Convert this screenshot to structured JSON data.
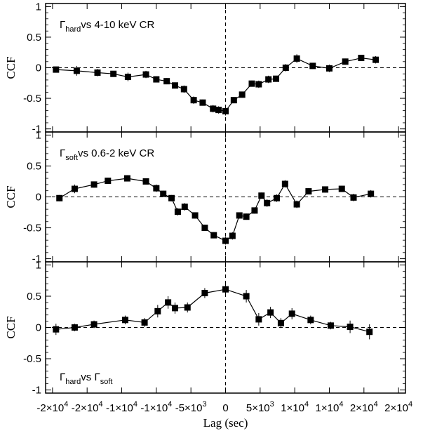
{
  "chart_data": {
    "type": "line",
    "x_axis": {
      "label": "Lag (sec)",
      "lim": [
        -26000,
        26000
      ],
      "ticks": [
        {
          "value": -25000,
          "label_base": "-2×10",
          "label_exp": "4"
        },
        {
          "value": -20000,
          "label_base": "-2×10",
          "label_exp": "4"
        },
        {
          "value": -15000,
          "label_base": "-1×10",
          "label_exp": "4"
        },
        {
          "value": -10000,
          "label_base": "-1×10",
          "label_exp": "4"
        },
        {
          "value": -5000,
          "label_base": "-5×10",
          "label_exp": "3"
        },
        {
          "value": 0,
          "label_base": "0",
          "label_exp": ""
        },
        {
          "value": 5000,
          "label_base": "5×10",
          "label_exp": "3"
        },
        {
          "value": 10000,
          "label_base": "1×10",
          "label_exp": "4"
        },
        {
          "value": 15000,
          "label_base": "1×10",
          "label_exp": "4"
        },
        {
          "value": 20000,
          "label_base": "2×10",
          "label_exp": "4"
        },
        {
          "value": 25000,
          "label_base": "2×10",
          "label_exp": "4"
        }
      ]
    },
    "panels": [
      {
        "ylabel": "CCF",
        "ylim": [
          -1.05,
          1.05
        ],
        "yticks": [
          {
            "v": 1,
            "l": "1"
          },
          {
            "v": 0.5,
            "l": "0.5"
          },
          {
            "v": 0,
            "l": "0"
          },
          {
            "v": -0.5,
            "l": "-0.5"
          },
          {
            "v": -1,
            "l": "-1"
          }
        ],
        "annotation": {
          "g": "Γ",
          "sub": "hard",
          "rest": "vs 4-10 keV CR"
        },
        "annotation_pos": "top-left",
        "series": [
          {
            "x": [
              -24500,
              -21500,
              -18500,
              -16200,
              -14100,
              -11500,
              -10000,
              -8500,
              -7300,
              -6000,
              -4600,
              -3300,
              -1800,
              -1000,
              0,
              1200,
              2400,
              3800,
              4800,
              6200,
              7300,
              8700,
              10300,
              12600,
              15000,
              17300,
              19600,
              21700
            ],
            "y": [
              -0.03,
              -0.05,
              -0.08,
              -0.1,
              -0.15,
              -0.11,
              -0.19,
              -0.22,
              -0.29,
              -0.35,
              -0.53,
              -0.57,
              -0.67,
              -0.69,
              -0.71,
              -0.53,
              -0.44,
              -0.26,
              -0.27,
              -0.19,
              -0.18,
              0.0,
              0.15,
              0.03,
              -0.01,
              0.1,
              0.16,
              0.13
            ],
            "yerr": [
              0.04,
              0.08,
              0.06,
              0.04,
              0.07,
              0.06,
              0.05,
              0.05,
              0.05,
              0.06,
              0.06,
              0.05,
              0.06,
              0.06,
              0.07,
              0.05,
              0.05,
              0.05,
              0.06,
              0.06,
              0.05,
              0.06,
              0.07,
              0.05,
              0.06,
              0.05,
              0.05,
              0.06
            ]
          }
        ]
      },
      {
        "ylabel": "CCF",
        "ylim": [
          -1.05,
          1.05
        ],
        "yticks": [
          {
            "v": 1,
            "l": "1"
          },
          {
            "v": 0.5,
            "l": "0.5"
          },
          {
            "v": 0,
            "l": "0"
          },
          {
            "v": -0.5,
            "l": "-0.5"
          },
          {
            "v": -1,
            "l": "-1"
          }
        ],
        "annotation": {
          "g": "Γ",
          "sub": "soft",
          "rest": "vs 0.6-2 keV CR"
        },
        "annotation_pos": "top-left",
        "series": [
          {
            "x": [
              -24000,
              -21800,
              -19000,
              -17000,
              -14200,
              -11500,
              -10000,
              -9000,
              -7800,
              -6900,
              -5900,
              -4400,
              -3000,
              -1700,
              0,
              1000,
              2000,
              3000,
              4200,
              5200,
              6000,
              7400,
              8600,
              10300,
              12000,
              14400,
              16800,
              18500,
              21000
            ],
            "y": [
              -0.02,
              0.13,
              0.2,
              0.26,
              0.3,
              0.25,
              0.14,
              0.05,
              -0.02,
              -0.24,
              -0.16,
              -0.3,
              -0.5,
              -0.62,
              -0.71,
              -0.63,
              -0.3,
              -0.32,
              -0.22,
              0.02,
              -0.1,
              -0.02,
              0.21,
              -0.12,
              0.09,
              0.12,
              0.13,
              -0.01,
              0.05
            ],
            "yerr": [
              0.05,
              0.07,
              0.05,
              0.05,
              0.05,
              0.04,
              0.06,
              0.05,
              0.05,
              0.06,
              0.06,
              0.05,
              0.05,
              0.05,
              0.06,
              0.06,
              0.05,
              0.05,
              0.05,
              0.05,
              0.06,
              0.06,
              0.06,
              0.06,
              0.05,
              0.05,
              0.05,
              0.06,
              0.06
            ]
          }
        ]
      },
      {
        "ylabel": "CCF",
        "ylim": [
          -1.05,
          1.05
        ],
        "yticks": [
          {
            "v": 1,
            "l": "1"
          },
          {
            "v": 0.5,
            "l": "0.5"
          },
          {
            "v": 0,
            "l": "0"
          },
          {
            "v": -0.5,
            "l": "-0.5"
          },
          {
            "v": -1,
            "l": "-1"
          }
        ],
        "annotation": {
          "g": "Γ",
          "sub": "hard",
          "rest": "vs ",
          "g2": "Γ",
          "sub2": "soft"
        },
        "annotation_pos": "bottom-left",
        "series": [
          {
            "x": [
              -24500,
              -21800,
              -19000,
              -14500,
              -11700,
              -9800,
              -8300,
              -7300,
              -5500,
              -3000,
              0,
              3000,
              4800,
              6500,
              8000,
              9600,
              12300,
              15200,
              18000,
              20800
            ],
            "y": [
              -0.03,
              0.0,
              0.05,
              0.12,
              0.08,
              0.26,
              0.4,
              0.31,
              0.32,
              0.55,
              0.61,
              0.5,
              0.13,
              0.24,
              0.07,
              0.22,
              0.12,
              0.03,
              0.01,
              -0.07
            ],
            "yerr": [
              0.09,
              0.06,
              0.06,
              0.07,
              0.07,
              0.1,
              0.1,
              0.09,
              0.08,
              0.08,
              0.1,
              0.1,
              0.1,
              0.09,
              0.08,
              0.09,
              0.07,
              0.06,
              0.1,
              0.12
            ]
          }
        ]
      }
    ],
    "reference_lines": {
      "horizontal_y": 0,
      "vertical_x": 0,
      "style": "dashed"
    },
    "grid": false,
    "legend": "none"
  }
}
